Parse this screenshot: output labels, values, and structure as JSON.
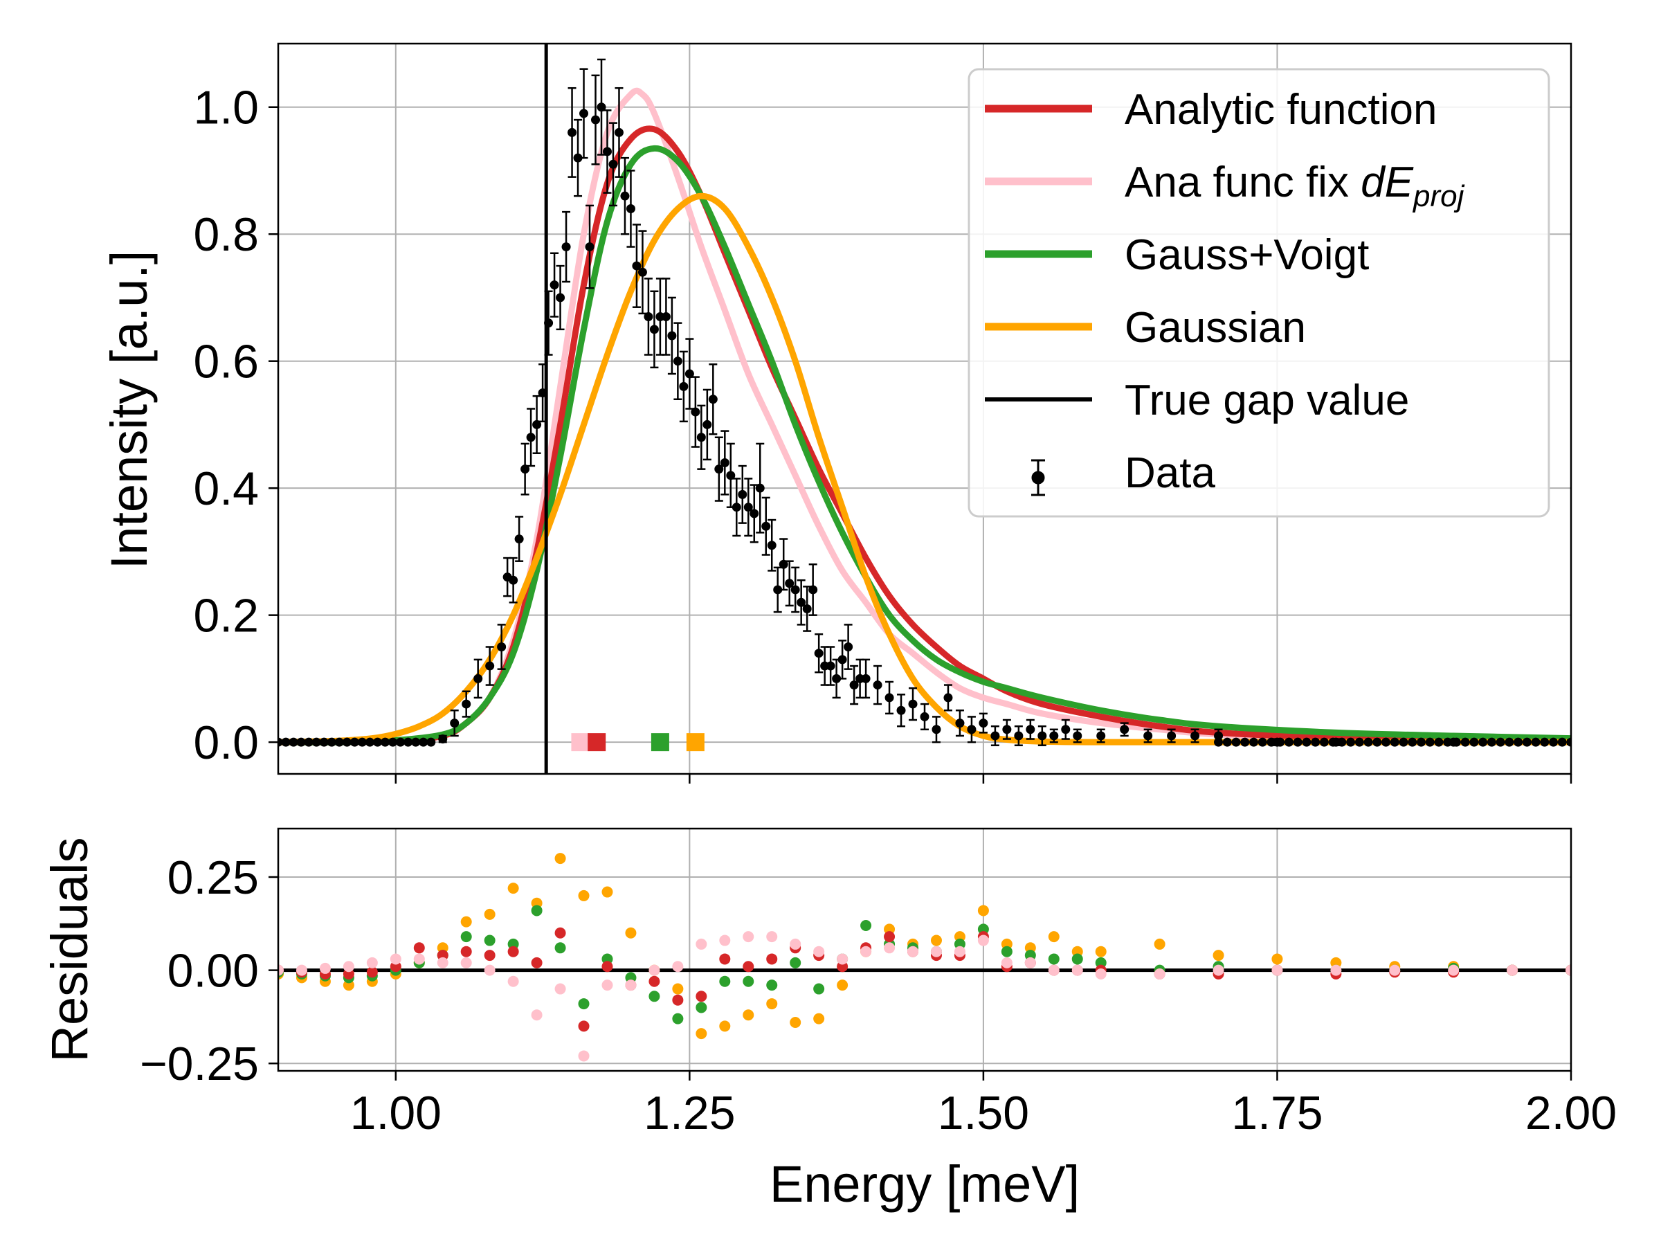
{
  "chart_data": [
    {
      "type": "line",
      "panel": "main",
      "ylabel": "Intensity [a.u.]",
      "xlim": [
        0.9,
        2.0
      ],
      "ylim": [
        -0.05,
        1.1
      ],
      "grid": true,
      "legend_position": "top-right",
      "yticks": [
        0.0,
        0.2,
        0.4,
        0.6,
        0.8,
        1.0
      ],
      "ytick_labels": [
        "0.0",
        "0.2",
        "0.4",
        "0.6",
        "0.8",
        "1.0"
      ],
      "true_gap": 1.128,
      "legend": [
        {
          "key": "analytic",
          "label": "Analytic function"
        },
        {
          "key": "anafix",
          "label": "Ana func fix ",
          "label_math": "dE",
          "label_sub": "proj"
        },
        {
          "key": "gv",
          "label": "Gauss+Voigt"
        },
        {
          "key": "gauss",
          "label": "Gaussian"
        },
        {
          "key": "gap",
          "label": "True gap value"
        },
        {
          "key": "data",
          "label": "Data"
        }
      ],
      "colors": {
        "analytic": "#d62728",
        "anafix": "#ffc0cb",
        "gv": "#2ca02c",
        "gauss": "#ffa500",
        "gap": "#000000",
        "data": "#000000"
      },
      "series": [
        {
          "key": "anafix",
          "name": "Ana func fix dE_proj",
          "x": [
            0.9,
            0.95,
            1.0,
            1.04,
            1.06,
            1.08,
            1.1,
            1.12,
            1.14,
            1.16,
            1.18,
            1.2,
            1.21,
            1.22,
            1.24,
            1.26,
            1.28,
            1.3,
            1.32,
            1.34,
            1.36,
            1.38,
            1.4,
            1.42,
            1.44,
            1.46,
            1.48,
            1.5,
            1.52,
            1.55,
            1.6,
            1.65,
            1.7,
            1.8,
            1.9,
            2.0
          ],
          "y": [
            0.0,
            0.0,
            0.002,
            0.01,
            0.03,
            0.07,
            0.16,
            0.32,
            0.56,
            0.8,
            0.96,
            1.02,
            1.02,
            0.99,
            0.89,
            0.78,
            0.68,
            0.58,
            0.5,
            0.42,
            0.34,
            0.27,
            0.22,
            0.17,
            0.14,
            0.11,
            0.085,
            0.07,
            0.06,
            0.045,
            0.03,
            0.02,
            0.012,
            0.005,
            0.002,
            0.001
          ]
        },
        {
          "key": "analytic",
          "name": "Analytic function",
          "x": [
            0.9,
            0.95,
            1.0,
            1.04,
            1.06,
            1.08,
            1.1,
            1.12,
            1.14,
            1.16,
            1.18,
            1.2,
            1.22,
            1.24,
            1.26,
            1.28,
            1.3,
            1.32,
            1.34,
            1.36,
            1.38,
            1.4,
            1.42,
            1.44,
            1.46,
            1.48,
            1.5,
            1.52,
            1.55,
            1.6,
            1.65,
            1.7,
            1.8,
            1.9,
            2.0
          ],
          "y": [
            0.0,
            0.0,
            0.002,
            0.01,
            0.03,
            0.07,
            0.15,
            0.3,
            0.5,
            0.72,
            0.88,
            0.95,
            0.965,
            0.93,
            0.86,
            0.77,
            0.68,
            0.59,
            0.51,
            0.43,
            0.36,
            0.29,
            0.23,
            0.185,
            0.15,
            0.12,
            0.1,
            0.08,
            0.06,
            0.04,
            0.025,
            0.015,
            0.007,
            0.003,
            0.001
          ]
        },
        {
          "key": "gv",
          "name": "Gauss+Voigt",
          "x": [
            0.9,
            0.95,
            1.0,
            1.04,
            1.06,
            1.08,
            1.1,
            1.12,
            1.14,
            1.16,
            1.18,
            1.2,
            1.22,
            1.24,
            1.26,
            1.28,
            1.3,
            1.32,
            1.34,
            1.36,
            1.38,
            1.4,
            1.42,
            1.44,
            1.46,
            1.48,
            1.5,
            1.52,
            1.55,
            1.6,
            1.65,
            1.7,
            1.8,
            1.9,
            2.0
          ],
          "y": [
            0.0,
            0.0,
            0.003,
            0.012,
            0.03,
            0.07,
            0.14,
            0.27,
            0.45,
            0.65,
            0.82,
            0.91,
            0.935,
            0.915,
            0.86,
            0.78,
            0.69,
            0.6,
            0.5,
            0.41,
            0.33,
            0.26,
            0.2,
            0.16,
            0.13,
            0.11,
            0.095,
            0.085,
            0.07,
            0.05,
            0.035,
            0.025,
            0.015,
            0.01,
            0.006
          ]
        },
        {
          "key": "gauss",
          "name": "Gaussian",
          "x": [
            0.9,
            0.95,
            0.98,
            1.0,
            1.02,
            1.04,
            1.06,
            1.08,
            1.1,
            1.12,
            1.14,
            1.16,
            1.18,
            1.2,
            1.22,
            1.24,
            1.26,
            1.28,
            1.3,
            1.32,
            1.34,
            1.36,
            1.38,
            1.4,
            1.42,
            1.44,
            1.46,
            1.48,
            1.5,
            1.52,
            1.55,
            1.6,
            1.7,
            2.0
          ],
          "y": [
            0.0,
            0.002,
            0.006,
            0.013,
            0.025,
            0.045,
            0.08,
            0.13,
            0.2,
            0.29,
            0.39,
            0.5,
            0.61,
            0.71,
            0.79,
            0.84,
            0.86,
            0.84,
            0.78,
            0.7,
            0.6,
            0.48,
            0.37,
            0.26,
            0.17,
            0.1,
            0.055,
            0.025,
            0.01,
            0.004,
            0.001,
            0.0,
            0.0,
            0.0
          ]
        }
      ],
      "gap_markers": [
        {
          "key": "anafix",
          "x": 1.157
        },
        {
          "key": "analytic",
          "x": 1.171
        },
        {
          "key": "gv",
          "x": 1.225
        },
        {
          "key": "gauss",
          "x": 1.255
        }
      ],
      "data_points": {
        "x": [
          1.04,
          1.05,
          1.06,
          1.07,
          1.08,
          1.09,
          1.095,
          1.1,
          1.105,
          1.11,
          1.115,
          1.12,
          1.125,
          1.13,
          1.135,
          1.14,
          1.145,
          1.15,
          1.155,
          1.16,
          1.165,
          1.17,
          1.175,
          1.18,
          1.185,
          1.19,
          1.195,
          1.2,
          1.205,
          1.21,
          1.215,
          1.22,
          1.225,
          1.23,
          1.235,
          1.24,
          1.245,
          1.25,
          1.255,
          1.26,
          1.265,
          1.27,
          1.275,
          1.28,
          1.285,
          1.29,
          1.295,
          1.3,
          1.305,
          1.31,
          1.315,
          1.32,
          1.325,
          1.33,
          1.335,
          1.34,
          1.345,
          1.35,
          1.355,
          1.36,
          1.365,
          1.37,
          1.375,
          1.38,
          1.385,
          1.39,
          1.395,
          1.4,
          1.41,
          1.42,
          1.43,
          1.44,
          1.45,
          1.46,
          1.47,
          1.48,
          1.49,
          1.5,
          1.51,
          1.52,
          1.53,
          1.54,
          1.55,
          1.56,
          1.57,
          1.58,
          1.6,
          1.62,
          1.64,
          1.66,
          1.68,
          1.7,
          1.75,
          1.8,
          1.9,
          2.0
        ],
        "y": [
          0.005,
          0.03,
          0.06,
          0.1,
          0.12,
          0.15,
          0.26,
          0.255,
          0.32,
          0.43,
          0.48,
          0.5,
          0.55,
          0.66,
          0.72,
          0.7,
          0.78,
          0.96,
          0.92,
          0.99,
          0.78,
          0.98,
          1.0,
          0.93,
          0.91,
          0.96,
          0.86,
          0.84,
          0.75,
          0.74,
          0.67,
          0.65,
          0.67,
          0.67,
          0.64,
          0.6,
          0.56,
          0.58,
          0.52,
          0.48,
          0.5,
          0.54,
          0.43,
          0.44,
          0.42,
          0.37,
          0.39,
          0.37,
          0.36,
          0.4,
          0.34,
          0.31,
          0.24,
          0.28,
          0.25,
          0.24,
          0.22,
          0.21,
          0.24,
          0.14,
          0.12,
          0.12,
          0.1,
          0.13,
          0.15,
          0.09,
          0.1,
          0.1,
          0.09,
          0.07,
          0.05,
          0.06,
          0.04,
          0.02,
          0.07,
          0.03,
          0.02,
          0.03,
          0.01,
          0.02,
          0.01,
          0.02,
          0.01,
          0.01,
          0.02,
          0.01,
          0.01,
          0.02,
          0.01,
          0.01,
          0.01,
          0.01,
          0.0,
          0.0,
          0.0,
          0.0
        ],
        "err": [
          0.005,
          0.02,
          0.02,
          0.03,
          0.03,
          0.035,
          0.03,
          0.035,
          0.035,
          0.04,
          0.045,
          0.045,
          0.045,
          0.05,
          0.05,
          0.05,
          0.055,
          0.07,
          0.06,
          0.07,
          0.065,
          0.07,
          0.075,
          0.065,
          0.065,
          0.07,
          0.06,
          0.06,
          0.065,
          0.065,
          0.06,
          0.06,
          0.06,
          0.06,
          0.06,
          0.06,
          0.055,
          0.055,
          0.055,
          0.05,
          0.055,
          0.055,
          0.05,
          0.05,
          0.05,
          0.045,
          0.045,
          0.045,
          0.045,
          0.07,
          0.045,
          0.04,
          0.035,
          0.04,
          0.035,
          0.035,
          0.035,
          0.035,
          0.04,
          0.03,
          0.03,
          0.03,
          0.03,
          0.03,
          0.035,
          0.03,
          0.03,
          0.03,
          0.03,
          0.025,
          0.025,
          0.025,
          0.02,
          0.02,
          0.02,
          0.02,
          0.02,
          0.015,
          0.015,
          0.015,
          0.015,
          0.015,
          0.015,
          0.01,
          0.015,
          0.01,
          0.01,
          0.01,
          0.01,
          0.01,
          0.01,
          0.01,
          0.005,
          0.005,
          0.003,
          0.003
        ]
      }
    },
    {
      "type": "scatter",
      "panel": "residuals",
      "xlabel": "Energy [meV]",
      "ylabel": "Residuals",
      "xlim": [
        0.9,
        2.0
      ],
      "ylim": [
        -0.27,
        0.38
      ],
      "grid": true,
      "xticks": [
        1.0,
        1.25,
        1.5,
        1.75,
        2.0
      ],
      "xtick_labels": [
        "1.00",
        "1.25",
        "1.50",
        "1.75",
        "2.00"
      ],
      "yticks": [
        -0.25,
        0.0,
        0.25
      ],
      "ytick_labels": [
        "−0.25",
        "0.00",
        "0.25"
      ],
      "baseline": 0.0,
      "series": [
        {
          "key": "gauss",
          "name": "Gaussian residuals",
          "x": [
            0.9,
            0.92,
            0.94,
            0.96,
            0.98,
            1.0,
            1.02,
            1.04,
            1.06,
            1.08,
            1.1,
            1.12,
            1.14,
            1.16,
            1.18,
            1.2,
            1.22,
            1.24,
            1.26,
            1.28,
            1.3,
            1.32,
            1.34,
            1.36,
            1.38,
            1.4,
            1.42,
            1.44,
            1.46,
            1.48,
            1.5,
            1.52,
            1.54,
            1.56,
            1.58,
            1.6,
            1.65,
            1.7,
            1.75,
            1.8,
            1.85,
            1.9,
            1.95,
            2.0
          ],
          "y": [
            -0.01,
            -0.02,
            -0.03,
            -0.04,
            -0.03,
            -0.01,
            0.02,
            0.06,
            0.13,
            0.15,
            0.22,
            0.18,
            0.3,
            0.2,
            0.21,
            0.1,
            0.0,
            -0.05,
            -0.17,
            -0.15,
            -0.12,
            -0.09,
            -0.14,
            -0.13,
            -0.04,
            0.05,
            0.11,
            0.07,
            0.08,
            0.09,
            0.16,
            0.07,
            0.06,
            0.09,
            0.05,
            0.05,
            0.07,
            0.04,
            0.03,
            0.02,
            0.01,
            0.01,
            0.0,
            0.0
          ]
        },
        {
          "key": "gv",
          "name": "Gauss+Voigt residuals",
          "x": [
            0.9,
            0.92,
            0.94,
            0.96,
            0.98,
            1.0,
            1.02,
            1.04,
            1.06,
            1.08,
            1.1,
            1.12,
            1.14,
            1.16,
            1.18,
            1.2,
            1.22,
            1.24,
            1.26,
            1.28,
            1.3,
            1.32,
            1.34,
            1.36,
            1.38,
            1.4,
            1.42,
            1.44,
            1.46,
            1.48,
            1.5,
            1.52,
            1.54,
            1.56,
            1.58,
            1.6,
            1.65,
            1.7,
            1.75,
            1.8,
            1.85,
            1.9,
            1.95,
            2.0
          ],
          "y": [
            -0.005,
            -0.01,
            -0.015,
            -0.02,
            -0.015,
            0.0,
            0.02,
            0.04,
            0.09,
            0.08,
            0.07,
            0.16,
            0.06,
            -0.09,
            0.03,
            -0.02,
            -0.07,
            -0.13,
            -0.1,
            -0.03,
            -0.03,
            -0.04,
            0.02,
            -0.05,
            0.03,
            0.12,
            0.07,
            0.06,
            0.05,
            0.07,
            0.11,
            0.05,
            0.04,
            0.03,
            0.03,
            0.02,
            0.0,
            0.01,
            0.0,
            0.0,
            0.0,
            0.005,
            0.0,
            0.0
          ]
        },
        {
          "key": "analytic",
          "name": "Analytic residuals",
          "x": [
            0.9,
            0.92,
            0.94,
            0.96,
            0.98,
            1.0,
            1.02,
            1.04,
            1.06,
            1.08,
            1.1,
            1.12,
            1.14,
            1.16,
            1.18,
            1.2,
            1.22,
            1.24,
            1.26,
            1.28,
            1.3,
            1.32,
            1.34,
            1.36,
            1.38,
            1.4,
            1.42,
            1.44,
            1.46,
            1.48,
            1.5,
            1.52,
            1.54,
            1.56,
            1.58,
            1.6,
            1.65,
            1.7,
            1.75,
            1.8,
            1.85,
            1.9,
            1.95,
            2.0
          ],
          "y": [
            0.0,
            -0.005,
            -0.01,
            -0.01,
            -0.005,
            0.01,
            0.06,
            0.04,
            0.05,
            0.04,
            0.05,
            0.02,
            0.1,
            -0.15,
            0.01,
            -0.04,
            -0.03,
            -0.08,
            -0.07,
            0.03,
            0.01,
            0.03,
            0.06,
            0.04,
            0.01,
            0.06,
            0.09,
            0.05,
            0.04,
            0.04,
            0.09,
            0.01,
            0.02,
            0.0,
            0.0,
            0.0,
            -0.01,
            -0.01,
            0.0,
            -0.01,
            -0.005,
            -0.005,
            0.0,
            0.0
          ]
        },
        {
          "key": "anafix",
          "name": "Ana func fix residuals",
          "x": [
            0.9,
            0.92,
            0.94,
            0.96,
            0.98,
            1.0,
            1.02,
            1.04,
            1.06,
            1.08,
            1.1,
            1.12,
            1.14,
            1.16,
            1.18,
            1.2,
            1.22,
            1.24,
            1.26,
            1.28,
            1.3,
            1.32,
            1.34,
            1.36,
            1.38,
            1.4,
            1.42,
            1.44,
            1.46,
            1.48,
            1.5,
            1.52,
            1.54,
            1.56,
            1.58,
            1.6,
            1.65,
            1.7,
            1.75,
            1.8,
            1.85,
            1.9,
            1.95,
            2.0
          ],
          "y": [
            0.0,
            0.0,
            0.005,
            0.01,
            0.02,
            0.03,
            0.03,
            0.02,
            0.02,
            0.0,
            -0.03,
            -0.12,
            -0.05,
            -0.23,
            -0.04,
            -0.04,
            0.0,
            0.01,
            0.07,
            0.08,
            0.09,
            0.09,
            0.07,
            0.05,
            0.03,
            0.05,
            0.06,
            0.05,
            0.05,
            0.05,
            0.08,
            0.02,
            0.02,
            0.0,
            0.0,
            -0.01,
            -0.01,
            0.0,
            0.0,
            0.0,
            0.0,
            0.0,
            0.0,
            0.0
          ]
        }
      ]
    }
  ]
}
